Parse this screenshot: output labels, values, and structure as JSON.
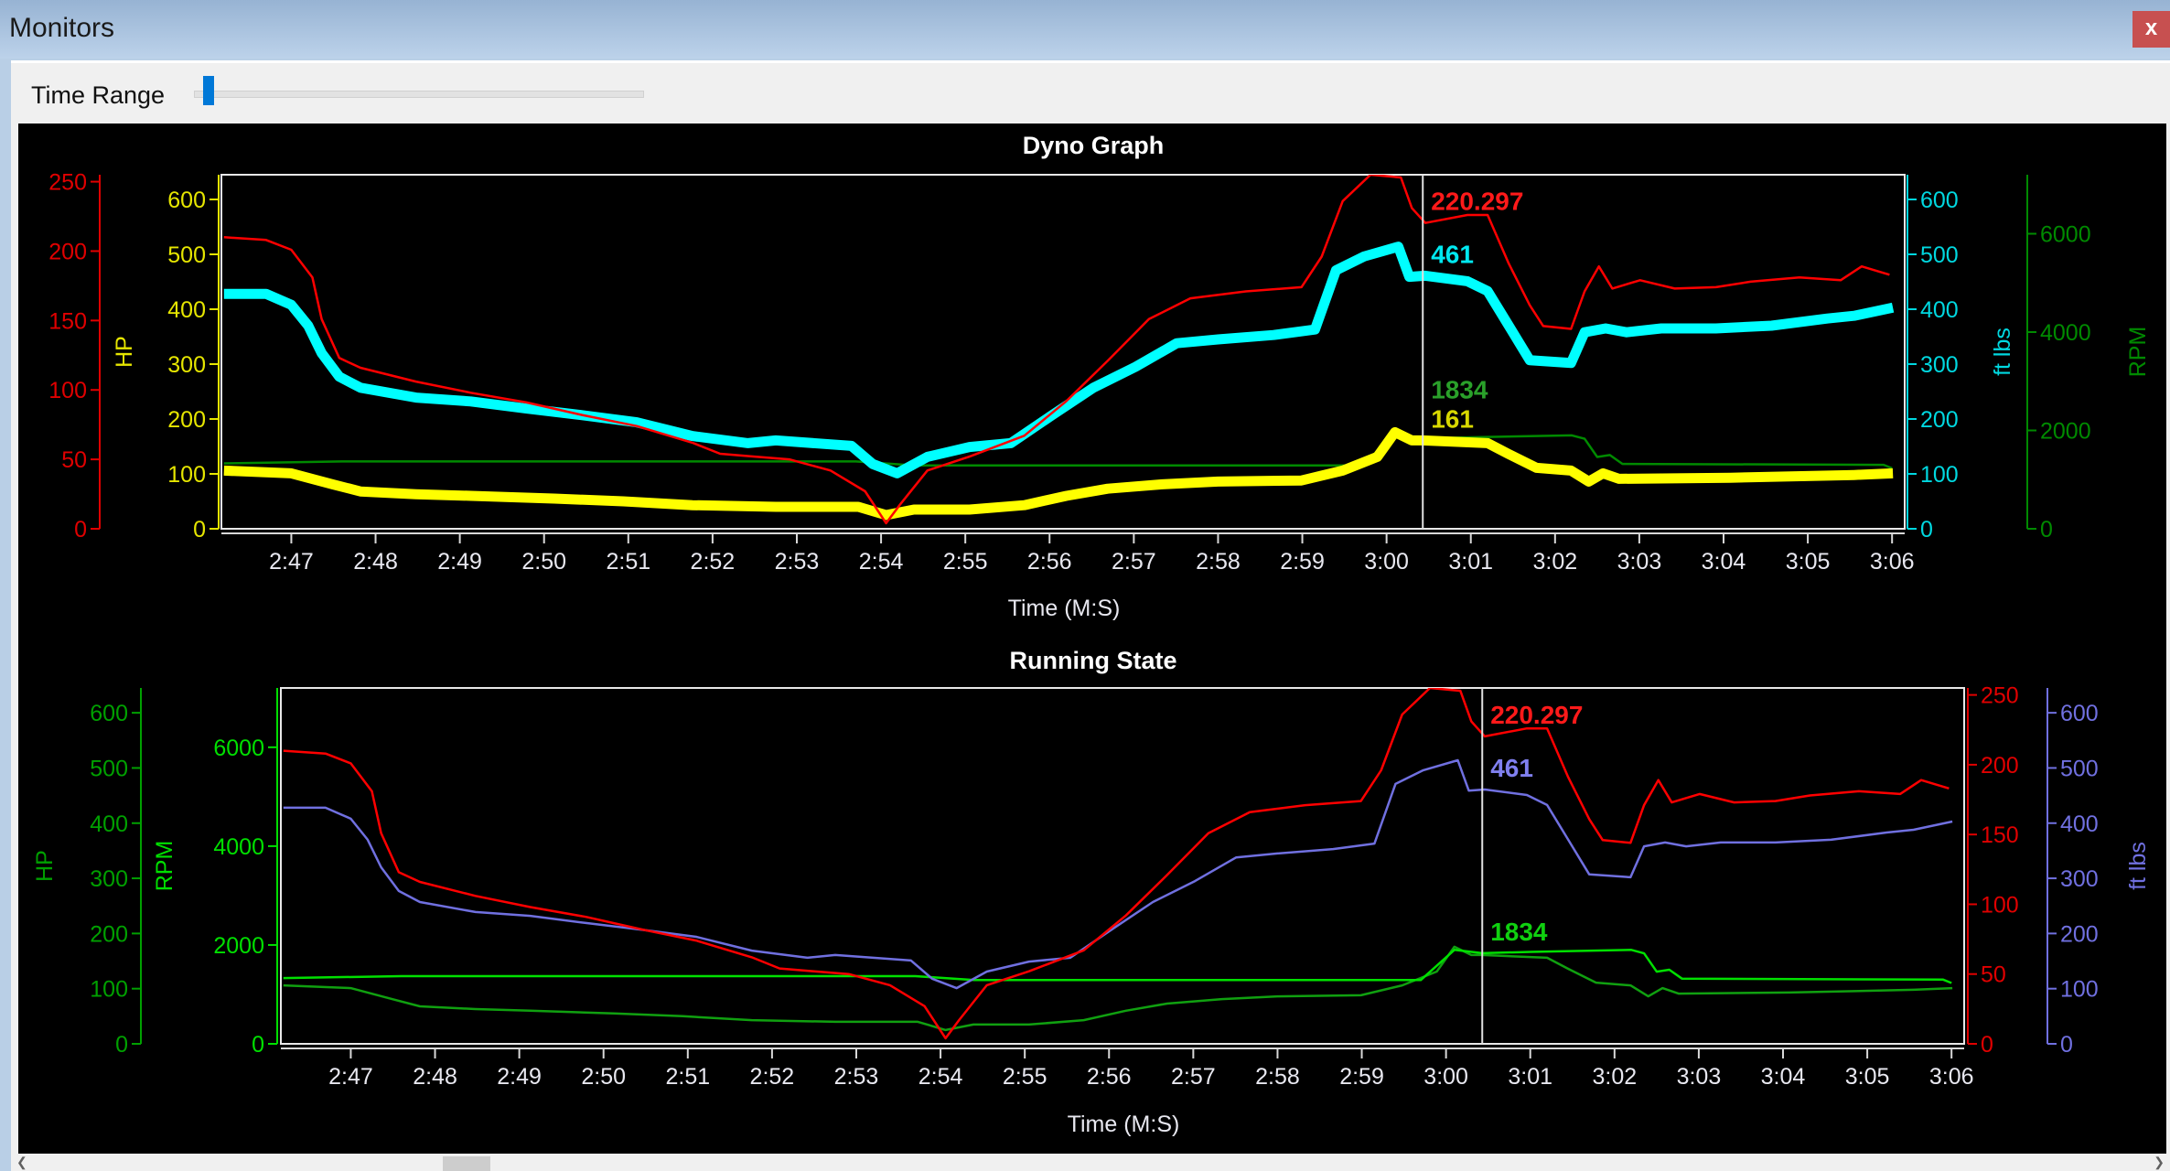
{
  "window": {
    "title": "Monitors",
    "close_label": "x"
  },
  "toolbar": {
    "time_range_label": "Time Range",
    "time_range_value": 0.02
  },
  "chart_data": {
    "type": "line",
    "x_domain": [
      166.17,
      186.15
    ],
    "x_ticks": [
      167,
      168,
      169,
      170,
      171,
      172,
      173,
      174,
      175,
      176,
      177,
      178,
      179,
      180,
      181,
      182,
      183,
      184,
      185,
      186
    ],
    "x_tick_labels": [
      "2:47",
      "2:48",
      "2:49",
      "2:50",
      "2:51",
      "2:52",
      "2:53",
      "2:54",
      "2:55",
      "2:56",
      "2:57",
      "2:58",
      "2:59",
      "3:00",
      "3:01",
      "3:02",
      "3:03",
      "3:04",
      "3:05",
      "3:06"
    ],
    "cursor_time": 180.43,
    "series": {
      "hp": [
        [
          166.2,
          210
        ],
        [
          166.7,
          208
        ],
        [
          167.0,
          201
        ],
        [
          167.25,
          181
        ],
        [
          167.36,
          151
        ],
        [
          167.57,
          123
        ],
        [
          167.82,
          116
        ],
        [
          168.48,
          106
        ],
        [
          169.13,
          98
        ],
        [
          169.79,
          91
        ],
        [
          170.45,
          82
        ],
        [
          171.1,
          74
        ],
        [
          171.76,
          62
        ],
        [
          172.09,
          54
        ],
        [
          172.5,
          52
        ],
        [
          172.91,
          50
        ],
        [
          173.4,
          42
        ],
        [
          173.81,
          27
        ],
        [
          174.06,
          4
        ],
        [
          174.22,
          17
        ],
        [
          174.55,
          42
        ],
        [
          175.05,
          52
        ],
        [
          175.7,
          67
        ],
        [
          176.2,
          92
        ],
        [
          176.69,
          121
        ],
        [
          177.18,
          151
        ],
        [
          177.67,
          166
        ],
        [
          178.33,
          171
        ],
        [
          178.99,
          174
        ],
        [
          179.23,
          196
        ],
        [
          179.48,
          236
        ],
        [
          179.81,
          255
        ],
        [
          180.17,
          253
        ],
        [
          180.3,
          231
        ],
        [
          180.46,
          220.297
        ],
        [
          180.96,
          226
        ],
        [
          181.2,
          226
        ],
        [
          181.45,
          191
        ],
        [
          181.7,
          161
        ],
        [
          181.86,
          146
        ],
        [
          182.19,
          144
        ],
        [
          182.35,
          171
        ],
        [
          182.52,
          189
        ],
        [
          182.68,
          173
        ],
        [
          183.01,
          179
        ],
        [
          183.42,
          173
        ],
        [
          183.91,
          174
        ],
        [
          184.32,
          178
        ],
        [
          184.9,
          181
        ],
        [
          185.39,
          179
        ],
        [
          185.64,
          189
        ],
        [
          185.97,
          183
        ]
      ],
      "torque": [
        [
          166.2,
          428
        ],
        [
          166.7,
          428
        ],
        [
          167.0,
          408
        ],
        [
          167.2,
          370
        ],
        [
          167.36,
          320
        ],
        [
          167.57,
          277
        ],
        [
          167.82,
          257
        ],
        [
          168.48,
          239
        ],
        [
          169.13,
          232
        ],
        [
          169.79,
          219
        ],
        [
          170.45,
          207
        ],
        [
          171.1,
          194
        ],
        [
          171.76,
          169
        ],
        [
          172.42,
          156
        ],
        [
          172.75,
          161
        ],
        [
          173.65,
          151
        ],
        [
          173.9,
          118
        ],
        [
          174.19,
          101
        ],
        [
          174.55,
          131
        ],
        [
          175.05,
          149
        ],
        [
          175.54,
          156
        ],
        [
          176.03,
          207
        ],
        [
          176.52,
          257
        ],
        [
          177.02,
          295
        ],
        [
          177.51,
          338
        ],
        [
          178.0,
          345
        ],
        [
          178.66,
          353
        ],
        [
          179.15,
          363
        ],
        [
          179.4,
          471
        ],
        [
          179.73,
          496
        ],
        [
          180.14,
          514
        ],
        [
          180.27,
          459
        ],
        [
          180.46,
          461
        ],
        [
          180.96,
          451
        ],
        [
          181.2,
          433
        ],
        [
          181.45,
          370
        ],
        [
          181.7,
          307
        ],
        [
          182.19,
          302
        ],
        [
          182.35,
          358
        ],
        [
          182.6,
          365
        ],
        [
          182.85,
          358
        ],
        [
          183.26,
          365
        ],
        [
          183.91,
          365
        ],
        [
          184.57,
          370
        ],
        [
          185.23,
          383
        ],
        [
          185.55,
          388
        ],
        [
          186.01,
          403
        ]
      ],
      "rpm": [
        [
          166.2,
          1330
        ],
        [
          167.6,
          1370
        ],
        [
          173.7,
          1370
        ],
        [
          174.4,
          1290
        ],
        [
          179.7,
          1290
        ],
        [
          180.1,
          1900
        ],
        [
          180.43,
          1834
        ],
        [
          181.0,
          1860
        ],
        [
          182.2,
          1900
        ],
        [
          182.35,
          1830
        ],
        [
          182.5,
          1460
        ],
        [
          182.65,
          1500
        ],
        [
          182.8,
          1320
        ],
        [
          185.9,
          1300
        ],
        [
          186.0,
          1230
        ]
      ],
      "hp_alt": [
        [
          166.2,
          106
        ],
        [
          167.0,
          101
        ],
        [
          167.49,
          81
        ],
        [
          167.82,
          68
        ],
        [
          168.48,
          63
        ],
        [
          169.13,
          60
        ],
        [
          170.12,
          55
        ],
        [
          170.94,
          50
        ],
        [
          171.76,
          43
        ],
        [
          172.75,
          40
        ],
        [
          173.73,
          40
        ],
        [
          174.06,
          25
        ],
        [
          174.39,
          35
        ],
        [
          175.05,
          35
        ],
        [
          175.7,
          43
        ],
        [
          176.2,
          60
        ],
        [
          176.69,
          73
        ],
        [
          177.34,
          81
        ],
        [
          178.0,
          86
        ],
        [
          178.99,
          88
        ],
        [
          179.48,
          106
        ],
        [
          179.89,
          131
        ],
        [
          180.1,
          176
        ],
        [
          180.3,
          161
        ],
        [
          180.43,
          161
        ],
        [
          181.2,
          156
        ],
        [
          181.45,
          136
        ],
        [
          181.78,
          111
        ],
        [
          182.19,
          106
        ],
        [
          182.4,
          86
        ],
        [
          182.57,
          101
        ],
        [
          182.76,
          91
        ],
        [
          184.08,
          93
        ],
        [
          185.55,
          98
        ],
        [
          186.01,
          101
        ]
      ]
    },
    "charts": [
      {
        "title": "Dyno Graph",
        "xlabel": "Time (M:S)",
        "axes": [
          {
            "label": "",
            "color": "#e00000",
            "min": 0,
            "max": 255,
            "ticks": [
              0,
              50,
              100,
              150,
              200,
              250
            ]
          },
          {
            "label": "HP",
            "color": "#e6e600",
            "min": 0,
            "max": 645,
            "ticks": [
              0,
              100,
              200,
              300,
              400,
              500,
              600
            ]
          },
          {
            "label": "ft lbs",
            "color": "#00d8e0",
            "min": 0,
            "max": 645,
            "ticks": [
              0,
              100,
              200,
              300,
              400,
              500,
              600
            ]
          },
          {
            "label": "RPM",
            "color": "#008a00",
            "min": 0,
            "max": 7200,
            "ticks": [
              0,
              2000,
              4000,
              6000
            ]
          }
        ],
        "lines": [
          {
            "series": "rpm",
            "axis": 3,
            "color": "#008a00"
          },
          {
            "series": "hp_alt",
            "axis": 1,
            "color": "#ffff00"
          },
          {
            "series": "torque",
            "axis": 2,
            "color": "#00ffff"
          },
          {
            "series": "hp",
            "axis": 0,
            "color": "#ff0000"
          }
        ],
        "cursor_labels": [
          {
            "text": "220.297",
            "series": "hp",
            "axis": 0,
            "color": "#ff1a1a"
          },
          {
            "text": "461",
            "series": "torque",
            "axis": 2,
            "color": "#00e8f0"
          },
          {
            "text": "161",
            "series": "hp_alt",
            "axis": 1,
            "color": "#d8d800"
          },
          {
            "text": "1834",
            "series": "rpm",
            "axis": 3,
            "color": "#2aa02a"
          }
        ]
      },
      {
        "title": "Running State",
        "xlabel": "Time (M:S)",
        "axes": [
          {
            "label": "HP",
            "color": "#00a000",
            "min": 0,
            "max": 645,
            "ticks": [
              0,
              100,
              200,
              300,
              400,
              500,
              600
            ]
          },
          {
            "label": "RPM",
            "color": "#00e000",
            "min": 0,
            "max": 7200,
            "ticks": [
              0,
              2000,
              4000,
              6000
            ]
          },
          {
            "label": "",
            "color": "#e00000",
            "min": 0,
            "max": 255,
            "ticks": [
              0,
              50,
              100,
              150,
              200,
              250
            ]
          },
          {
            "label": "ft lbs",
            "color": "#7070e0",
            "min": 0,
            "max": 645,
            "ticks": [
              0,
              100,
              200,
              300,
              400,
              500,
              600
            ]
          }
        ],
        "lines": [
          {
            "series": "hp_alt",
            "axis": 0,
            "color": "#10a010"
          },
          {
            "series": "rpm",
            "axis": 1,
            "color": "#00e000"
          },
          {
            "series": "torque",
            "axis": 3,
            "color": "#7070e0"
          },
          {
            "series": "hp",
            "axis": 2,
            "color": "#ff0000"
          }
        ],
        "cursor_labels": [
          {
            "text": "220.297",
            "series": "hp",
            "axis": 2,
            "color": "#ff1a1a"
          },
          {
            "text": "461",
            "series": "torque",
            "axis": 3,
            "color": "#8080f0"
          },
          {
            "text": "1834",
            "series": "rpm",
            "axis": 1,
            "color": "#10d010"
          }
        ]
      }
    ]
  }
}
